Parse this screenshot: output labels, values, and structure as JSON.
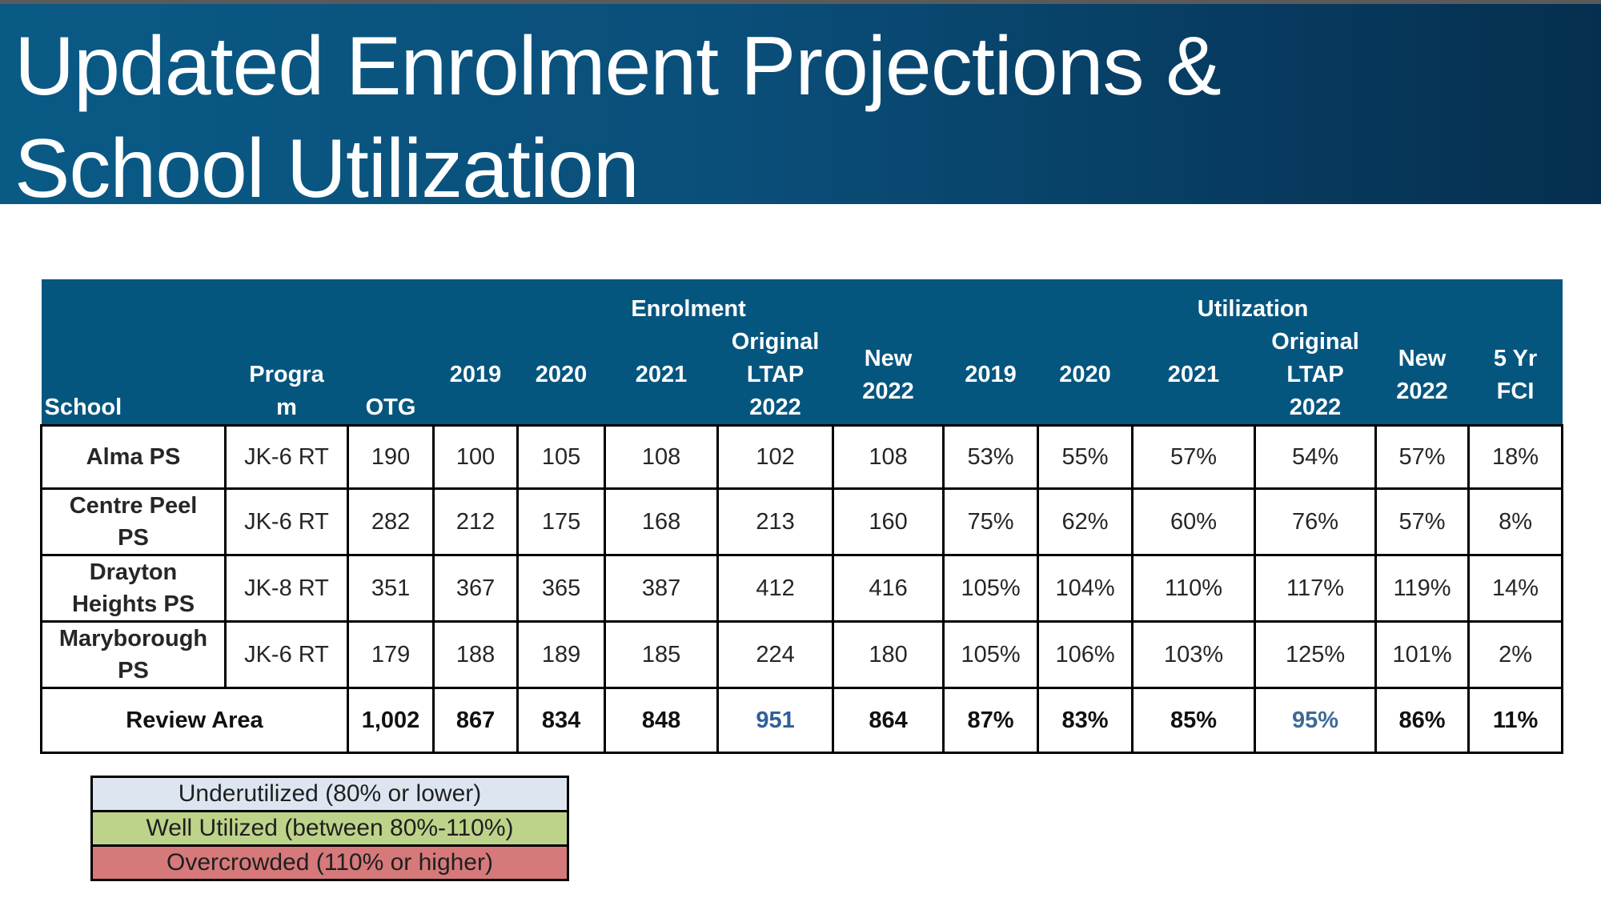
{
  "slide": {
    "title_line1": "Updated Enrolment Projections &",
    "title_line2": "School Utilization"
  },
  "table": {
    "group_headers": {
      "enrolment": "Enrolment",
      "utilization": "Utilization"
    },
    "columns": {
      "school": "School",
      "program_line1": "Progra",
      "program_line2": "m",
      "otg": "OTG",
      "enrol_2019": "2019",
      "enrol_2020": "2020",
      "enrol_2021": "2021",
      "enrol_ltap": [
        "Original",
        "LTAP",
        "2022"
      ],
      "enrol_new": [
        "New",
        "2022"
      ],
      "util_2019": "2019",
      "util_2020": "2020",
      "util_2021": "2021",
      "util_ltap": [
        "Original",
        "LTAP",
        "2022"
      ],
      "util_new": [
        "New",
        "2022"
      ],
      "fci": [
        "5 Yr",
        "FCI"
      ]
    },
    "rows": [
      {
        "school": [
          "Alma PS"
        ],
        "program": "JK-6 RT",
        "otg": "190",
        "enrolment": [
          "100",
          "105",
          "108",
          "102",
          "108"
        ],
        "utilization": [
          "53%",
          "55%",
          "57%",
          "54%",
          "57%"
        ],
        "utilization_status": [
          "under",
          "under",
          "under",
          "under",
          "under"
        ],
        "fci": "18%"
      },
      {
        "school": [
          "Centre Peel",
          "PS"
        ],
        "program": "JK-6 RT",
        "otg": "282",
        "enrolment": [
          "212",
          "175",
          "168",
          "213",
          "160"
        ],
        "utilization": [
          "75%",
          "62%",
          "60%",
          "76%",
          "57%"
        ],
        "utilization_status": [
          "under",
          "under",
          "under",
          "under",
          "under"
        ],
        "fci": "8%"
      },
      {
        "school": [
          "Drayton",
          "Heights PS"
        ],
        "program": "JK-8 RT",
        "otg": "351",
        "enrolment": [
          "367",
          "365",
          "387",
          "412",
          "416"
        ],
        "utilization": [
          "105%",
          "104%",
          "110%",
          "117%",
          "119%"
        ],
        "utilization_status": [
          "well",
          "well",
          "over",
          "over",
          "over"
        ],
        "fci": "14%"
      },
      {
        "school": [
          "Maryborough",
          "PS"
        ],
        "program": "JK-6 RT",
        "otg": "179",
        "enrolment": [
          "188",
          "189",
          "185",
          "224",
          "180"
        ],
        "utilization": [
          "105%",
          "106%",
          "103%",
          "125%",
          "101%"
        ],
        "utilization_status": [
          "well",
          "well",
          "well",
          "over",
          "well"
        ],
        "fci": "2%"
      }
    ],
    "total": {
      "label": "Review Area",
      "otg": "1,002",
      "enrolment": [
        "867",
        "834",
        "848",
        "951",
        "864"
      ],
      "utilization": [
        "87%",
        "83%",
        "85%",
        "95%",
        "86%"
      ],
      "utilization_status": [
        "well",
        "well",
        "well",
        "well",
        "well"
      ],
      "fci": "11%"
    }
  },
  "legend": [
    {
      "label": "Underutilized (80% or lower)",
      "status": "under",
      "color": "#dde6f0"
    },
    {
      "label": "Well Utilized (between 80%-110%)",
      "status": "well",
      "color": "#bed38a"
    },
    {
      "label": "Overcrowded (110% or higher)",
      "status": "over",
      "color": "#d6797a"
    }
  ],
  "colors": {
    "header": "#05567f",
    "banner": "#0a4f7a",
    "ltap_column_bg": "#dcdcdc",
    "ltap_text": "#3d6a9c"
  }
}
